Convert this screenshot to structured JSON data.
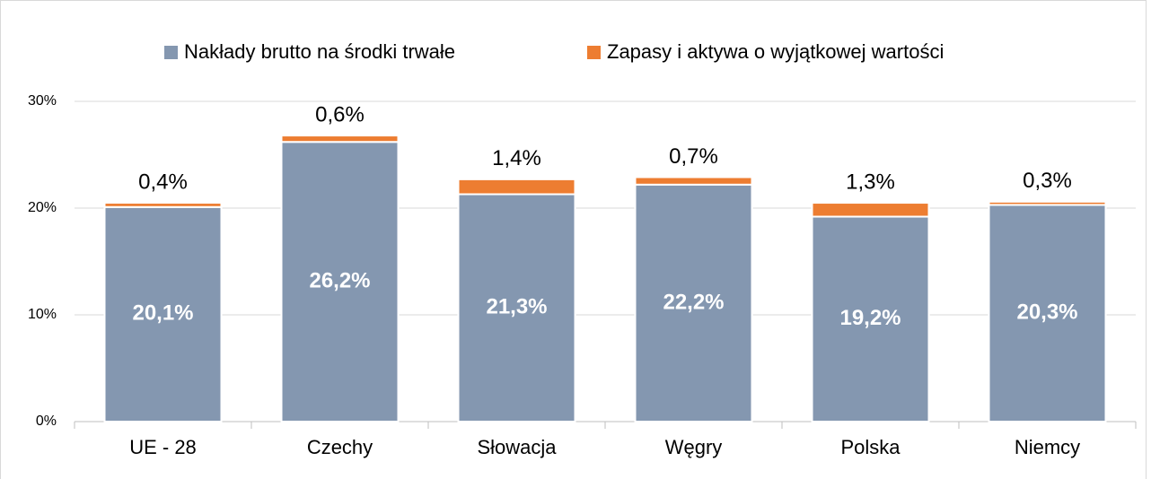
{
  "chart_data": {
    "type": "stacked_bar",
    "categories": [
      "UE - 28",
      "Czechy",
      "Słowacja",
      "Węgry",
      "Polska",
      "Niemcy"
    ],
    "series": [
      {
        "name": "Nakłady brutto na środki trwałe",
        "color": "#8497b0",
        "values": [
          20.1,
          26.2,
          21.3,
          22.2,
          19.2,
          20.3
        ],
        "value_labels": [
          "20,1%",
          "26,2%",
          "21,3%",
          "22,2%",
          "19,2%",
          "20,3%"
        ]
      },
      {
        "name": "Zapasy i aktywa o wyjątkowej wartości",
        "color": "#ed7d31",
        "values": [
          0.4,
          0.6,
          1.4,
          0.7,
          1.3,
          0.3
        ],
        "value_labels": [
          "0,4%",
          "0,6%",
          "1,4%",
          "0,7%",
          "1,3%",
          "0,3%"
        ]
      }
    ],
    "ylim": [
      0,
      30
    ],
    "yticks": [
      {
        "value": 0,
        "label": "0%"
      },
      {
        "value": 10,
        "label": "10%"
      },
      {
        "value": 20,
        "label": "20%"
      },
      {
        "value": 30,
        "label": "30%"
      }
    ],
    "grid": true,
    "legend": "top"
  }
}
